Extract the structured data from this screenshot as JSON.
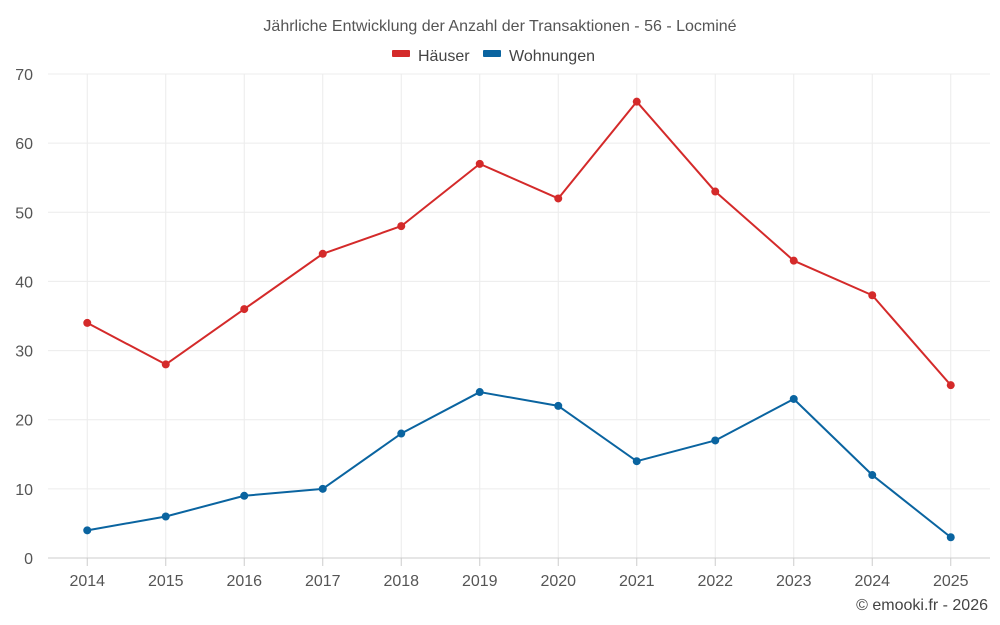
{
  "chart_data": {
    "type": "line",
    "title": "Jährliche Entwicklung der Anzahl der Transaktionen - 56 - Locminé",
    "categories": [
      "2014",
      "2015",
      "2016",
      "2017",
      "2018",
      "2019",
      "2020",
      "2021",
      "2022",
      "2023",
      "2024",
      "2025"
    ],
    "series": [
      {
        "name": "Häuser",
        "color": "#d42a2a",
        "values": [
          34,
          28,
          36,
          44,
          48,
          57,
          52,
          66,
          53,
          43,
          38,
          25
        ]
      },
      {
        "name": "Wohnungen",
        "color": "#0a64a0",
        "values": [
          4,
          6,
          9,
          10,
          18,
          24,
          22,
          14,
          17,
          23,
          12,
          3
        ]
      }
    ],
    "ylim": [
      0,
      70
    ],
    "yticks": [
      "0",
      "10",
      "20",
      "30",
      "40",
      "50",
      "60",
      "70"
    ],
    "xlabel": "",
    "ylabel": "",
    "grid": true,
    "legend": "top-center",
    "credit": "© emooki.fr - 2026"
  }
}
